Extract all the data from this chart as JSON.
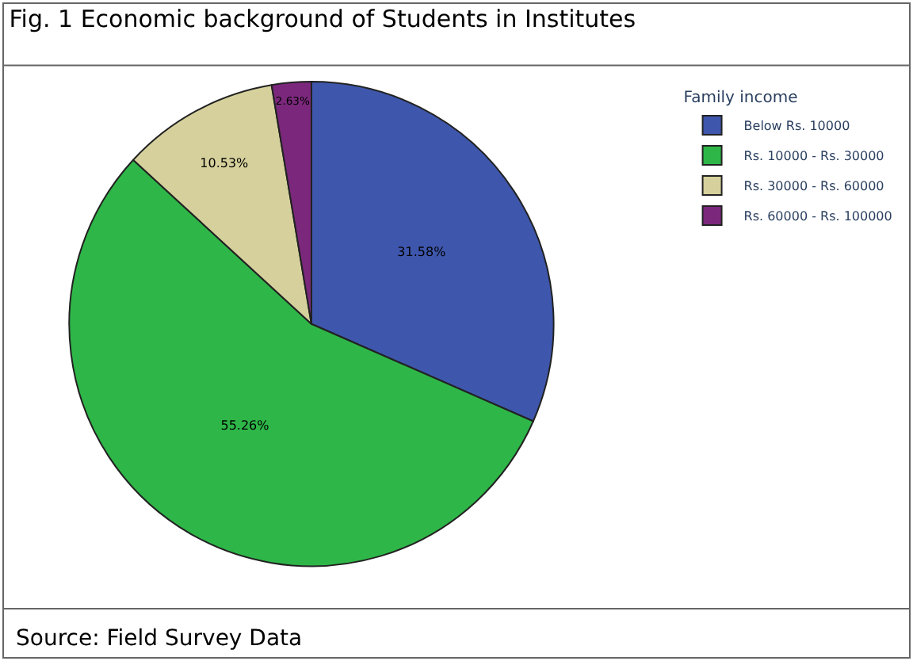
{
  "chart_data": {
    "type": "pie",
    "title": "Fig. 1 Economic background of Students in Institutes",
    "legend_title": "Family income",
    "legend": "top right",
    "categories": [
      "Below Rs. 10000",
      "Rs. 10000 - Rs. 30000",
      "Rs. 30000 - Rs. 60000",
      "Rs. 60000 - Rs. 100000"
    ],
    "values": [
      31.58,
      55.26,
      10.53,
      2.63
    ],
    "value_labels": [
      "31.58%",
      "55.26%",
      "10.53%",
      "2.63%"
    ],
    "colors": [
      "#3e57ac",
      "#2eb748",
      "#d6d19c",
      "#7b287c"
    ],
    "annotations": [
      "Source: Field Survey Data"
    ]
  }
}
